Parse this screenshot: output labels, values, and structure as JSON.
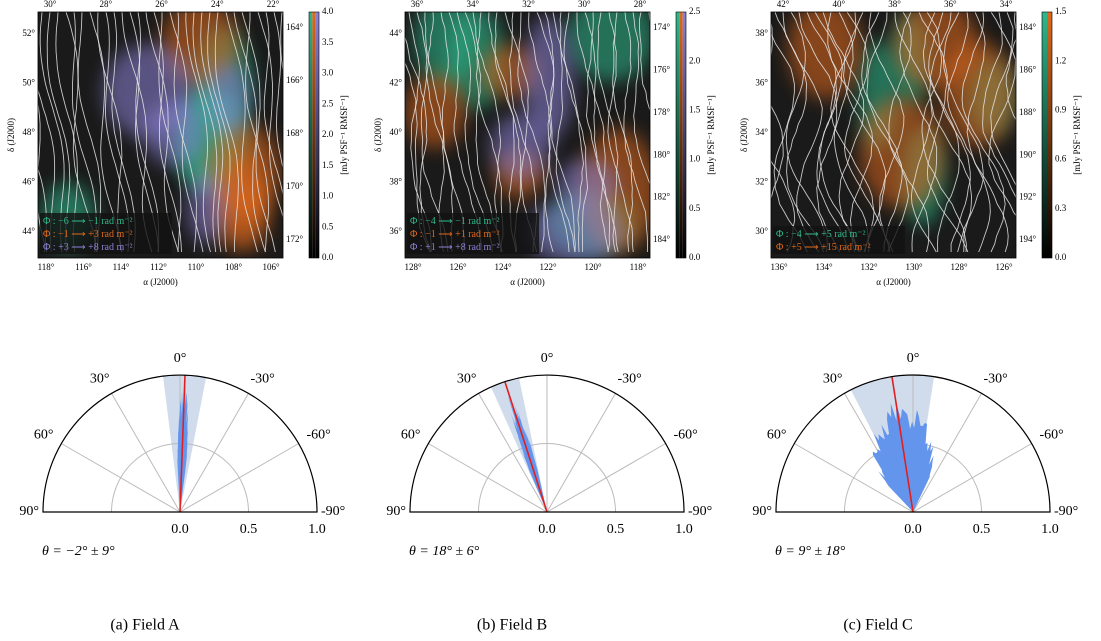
{
  "panels": [
    {
      "caption": "(a) Field A",
      "top_ticks": [
        "30°",
        "28°",
        "26°",
        "24°",
        "22°"
      ],
      "left_ticks": [
        "52°",
        "50°",
        "48°",
        "46°",
        "44°"
      ],
      "right_ticks": [
        "164°",
        "166°",
        "168°",
        "170°",
        "172°"
      ],
      "bottom_ticks": [
        "118°",
        "116°",
        "114°",
        "112°",
        "110°",
        "108°",
        "106°"
      ],
      "x_label": "α (J2000)",
      "y_label": "δ (J2000)",
      "colorbar_ticks": [
        "4.0",
        "3.5",
        "3.0",
        "2.5",
        "2.0",
        "1.5",
        "1.0",
        "0.5",
        "0.0"
      ],
      "colorbar_label": "[mJy PSF⁻¹ RMSF⁻¹]",
      "legend": [
        {
          "text": "Φ : −6 ⟶ −1 rad m⁻²",
          "color": "#2fb88c"
        },
        {
          "text": "Φ : −1 ⟶ +3 rad m⁻²",
          "color": "#e0691c"
        },
        {
          "text": "Φ : +3 ⟶ +8 rad m⁻²",
          "color": "#8c82d6"
        }
      ],
      "polar": {
        "angle_labels": [
          "0°",
          "30°",
          "-30°",
          "60°",
          "-60°",
          "90°",
          "-90°"
        ],
        "radial_labels": [
          "0.0",
          "0.5",
          "1.0"
        ],
        "theta": "θ = −2° ± 9°"
      }
    },
    {
      "caption": "(b) Field B",
      "top_ticks": [
        "36°",
        "34°",
        "32°",
        "30°",
        "28°"
      ],
      "left_ticks": [
        "44°",
        "42°",
        "40°",
        "38°",
        "36°"
      ],
      "right_ticks": [
        "174°",
        "176°",
        "178°",
        "180°",
        "182°",
        "184°"
      ],
      "bottom_ticks": [
        "128°",
        "126°",
        "124°",
        "122°",
        "120°",
        "118°"
      ],
      "x_label": "α (J2000)",
      "y_label": "δ (J2000)",
      "colorbar_ticks": [
        "2.5",
        "2.0",
        "1.5",
        "1.0",
        "0.5",
        "0.0"
      ],
      "colorbar_label": "[mJy PSF⁻¹ RMSF⁻¹]",
      "legend": [
        {
          "text": "Φ : −4 ⟶ −1 rad m⁻²",
          "color": "#2fb88c"
        },
        {
          "text": "Φ : −1 ⟶ +1 rad m⁻²",
          "color": "#e0691c"
        },
        {
          "text": "Φ : +1 ⟶ +8 rad m⁻²",
          "color": "#8c82d6"
        }
      ],
      "polar": {
        "angle_labels": [
          "0°",
          "30°",
          "-30°",
          "60°",
          "-60°",
          "90°",
          "-90°"
        ],
        "radial_labels": [
          "0.0",
          "0.5",
          "1.0"
        ],
        "theta": "θ = 18° ± 6°"
      }
    },
    {
      "caption": "(c) Field C",
      "top_ticks": [
        "42°",
        "40°",
        "38°",
        "36°",
        "34°"
      ],
      "left_ticks": [
        "38°",
        "36°",
        "34°",
        "32°",
        "30°"
      ],
      "right_ticks": [
        "184°",
        "186°",
        "188°",
        "190°",
        "192°",
        "194°"
      ],
      "bottom_ticks": [
        "136°",
        "134°",
        "132°",
        "130°",
        "128°",
        "126°"
      ],
      "x_label": "α (J2000)",
      "y_label": "δ (J2000)",
      "colorbar_ticks": [
        "1.5",
        "1.2",
        "0.9",
        "0.6",
        "0.3",
        "0.0"
      ],
      "colorbar_label": "[mJy PSF⁻¹ RMSF⁻¹]",
      "legend": [
        {
          "text": "Φ : −4 ⟶ +5 rad m⁻²",
          "color": "#2fb88c"
        },
        {
          "text": "Φ : +5 ⟶ +15 rad m⁻²",
          "color": "#e0691c"
        }
      ],
      "polar": {
        "angle_labels": [
          "0°",
          "30°",
          "-30°",
          "60°",
          "-60°",
          "90°",
          "-90°"
        ],
        "radial_labels": [
          "0.0",
          "0.5",
          "1.0"
        ],
        "theta": "θ = 9° ± 18°"
      }
    }
  ]
}
